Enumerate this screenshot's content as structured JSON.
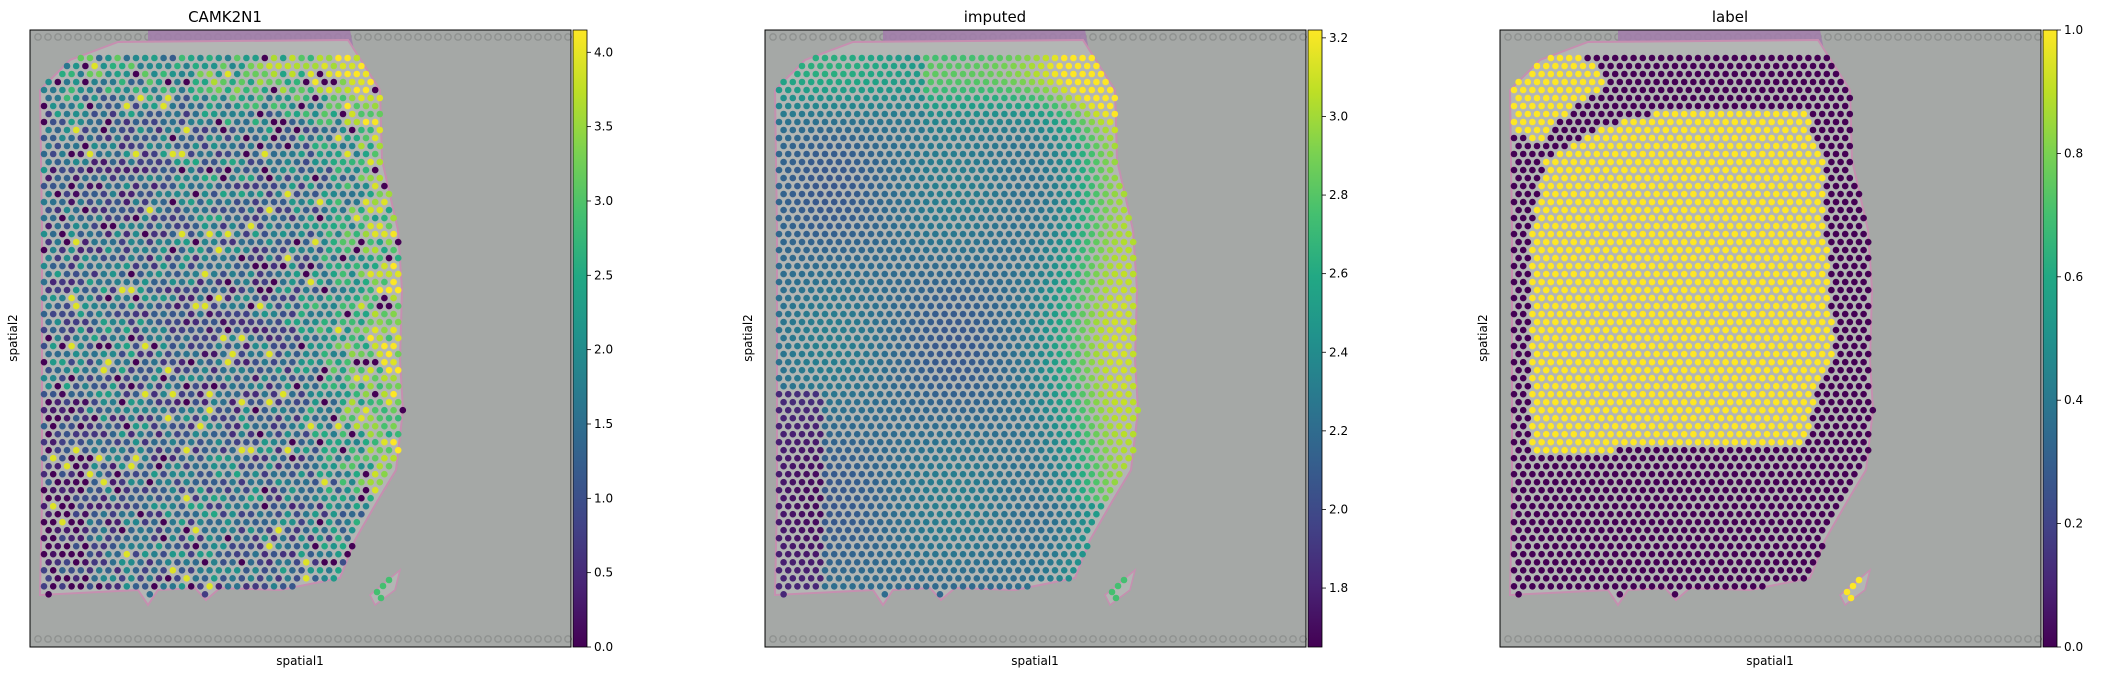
{
  "chart_data": [
    {
      "type": "heatmap",
      "title": "CAMK2N1",
      "xlabel": "spatial1",
      "ylabel": "spatial2",
      "colormap": "viridis",
      "colorbar": {
        "min": 0.0,
        "max": 4.15,
        "ticks": [
          "0.0",
          "0.5",
          "1.0",
          "1.5",
          "2.0",
          "2.5",
          "3.0",
          "3.5",
          "4.0"
        ],
        "tick_values": [
          0,
          0.5,
          1,
          1.5,
          2,
          2.5,
          3,
          3.5,
          4
        ]
      },
      "pattern": "noisy",
      "grid": false
    },
    {
      "type": "heatmap",
      "title": "imputed",
      "xlabel": "spatial1",
      "ylabel": "spatial2",
      "colormap": "viridis",
      "colorbar": {
        "min": 1.65,
        "max": 3.22,
        "ticks": [
          "1.8",
          "2.0",
          "2.2",
          "2.4",
          "2.6",
          "2.8",
          "3.0",
          "3.2"
        ],
        "tick_values": [
          1.8,
          2.0,
          2.2,
          2.4,
          2.6,
          2.8,
          3.0,
          3.2
        ]
      },
      "pattern": "smooth",
      "grid": false
    },
    {
      "type": "heatmap",
      "title": "label",
      "xlabel": "spatial1",
      "ylabel": "spatial2",
      "colormap": "viridis",
      "colorbar": {
        "min": 0.0,
        "max": 1.0,
        "ticks": [
          "0.0",
          "0.2",
          "0.4",
          "0.6",
          "0.8",
          "1.0"
        ],
        "tick_values": [
          0,
          0.2,
          0.4,
          0.6,
          0.8,
          1.0
        ]
      },
      "pattern": "binary",
      "grid": false
    }
  ],
  "colors": {
    "background_tissue": "#a6a9a7",
    "tissue_pink_edge": "#c68fb0",
    "fiducial": "#8e918f",
    "label_outside": "#440154",
    "label_inside": "#fde725"
  }
}
